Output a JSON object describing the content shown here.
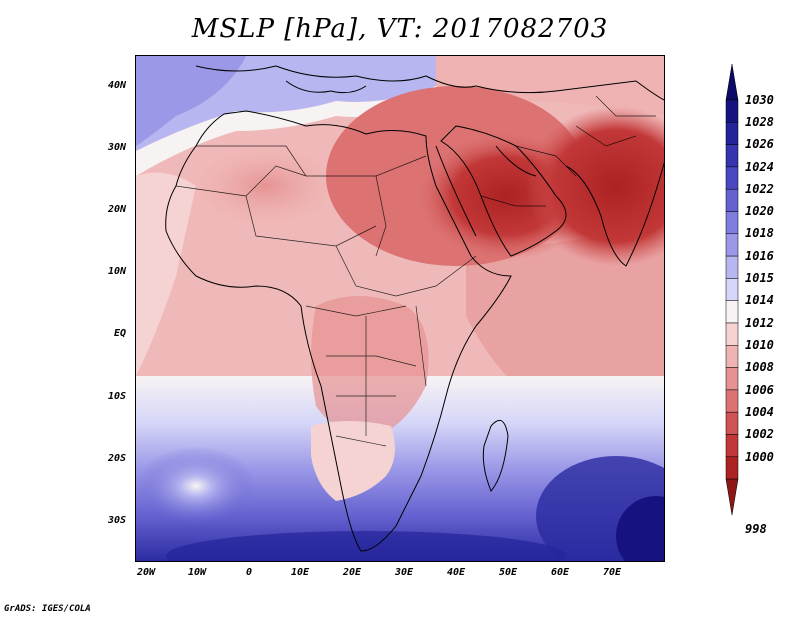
{
  "title": "MSLP [hPa], VT: 2017082703",
  "footer": "GrADS: IGES/COLA",
  "map": {
    "variable": "MSLP",
    "units": "hPa",
    "valid_time": "2017082703",
    "lat_labels": [
      "40N",
      "30N",
      "20N",
      "10N",
      "EQ",
      "10S",
      "20S",
      "30S"
    ],
    "lon_labels": [
      "20W",
      "10W",
      "0",
      "10E",
      "20E",
      "30E",
      "40E",
      "50E",
      "60E",
      "70E"
    ]
  },
  "colorbar": {
    "levels": [
      "1030",
      "1028",
      "1026",
      "1024",
      "1022",
      "1020",
      "1018",
      "1016",
      "1015",
      "1014",
      "1012",
      "1010",
      "1008",
      "1006",
      "1004",
      "1002",
      "1000",
      "998"
    ],
    "colors": [
      "#16127f",
      "#24239a",
      "#3634ae",
      "#4a48c0",
      "#6461d0",
      "#7f7ddd",
      "#9a98e7",
      "#b7b6f0",
      "#d6d6f8",
      "#f7f3f3",
      "#f5d3d3",
      "#efb3b3",
      "#e69292",
      "#dc7272",
      "#d05353",
      "#c23838",
      "#ac2222"
    ],
    "top_color": "#0a0a6a",
    "bottom_color": "#8e1616"
  }
}
